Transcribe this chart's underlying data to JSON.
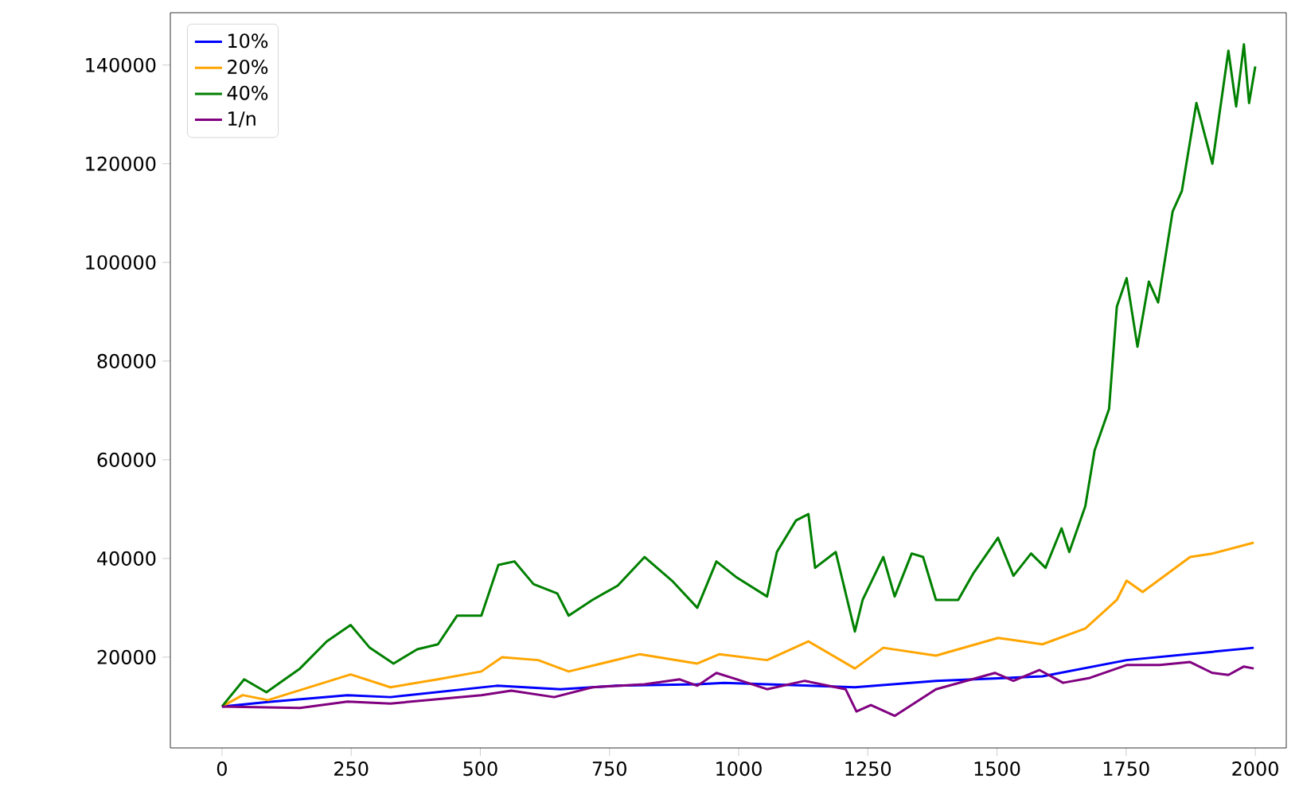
{
  "chart_data": {
    "type": "line",
    "xlim": [
      -100,
      2060
    ],
    "ylim": [
      1600,
      150600
    ],
    "xticks": [
      0,
      250,
      500,
      750,
      1000,
      1250,
      1500,
      1750,
      2000
    ],
    "yticks": [
      20000,
      40000,
      60000,
      80000,
      100000,
      120000,
      140000
    ],
    "grid": false,
    "legend": "top left",
    "marker": "none",
    "line_style": "solid",
    "series": [
      {
        "name": "10%",
        "color": "#0000ff",
        "x": [
          0,
          89,
          243,
          326,
          532,
          655,
          760,
          920,
          972,
          1225,
          1382,
          1588,
          1751,
          1997
        ],
        "values": [
          10000,
          10900,
          12300,
          11900,
          14200,
          13500,
          14200,
          14500,
          14800,
          13900,
          15200,
          16100,
          19400,
          21900
        ]
      },
      {
        "name": "20%",
        "color": "#ffa500",
        "x": [
          0,
          40,
          89,
          249,
          326,
          418,
          502,
          542,
          612,
          671,
          809,
          920,
          963,
          1055,
          1135,
          1225,
          1280,
          1382,
          1502,
          1588,
          1671,
          1732,
          1751,
          1782,
          1874,
          1917,
          1997
        ],
        "values": [
          10000,
          12300,
          11300,
          16500,
          13900,
          15500,
          17100,
          20000,
          19400,
          17100,
          20600,
          18700,
          20600,
          19400,
          23200,
          17700,
          21900,
          20300,
          23900,
          22600,
          25800,
          31600,
          35500,
          33200,
          40300,
          41000,
          43200
        ]
      },
      {
        "name": "40%",
        "color": "#008000",
        "x": [
          0,
          43,
          86,
          151,
          203,
          249,
          286,
          332,
          378,
          418,
          455,
          502,
          535,
          566,
          603,
          649,
          671,
          717,
          766,
          818,
          871,
          920,
          957,
          997,
          1055,
          1074,
          1111,
          1135,
          1148,
          1188,
          1225,
          1240,
          1280,
          1302,
          1335,
          1357,
          1382,
          1425,
          1455,
          1502,
          1532,
          1566,
          1594,
          1625,
          1640,
          1671,
          1689,
          1717,
          1732,
          1751,
          1772,
          1794,
          1812,
          1840,
          1858,
          1886,
          1917,
          1948,
          1963,
          1978,
          1988,
          2000
        ],
        "values": [
          10000,
          15500,
          12900,
          17700,
          23200,
          26500,
          21900,
          18700,
          21600,
          22600,
          28400,
          28400,
          38700,
          39400,
          34800,
          32900,
          28400,
          31600,
          34500,
          40300,
          35500,
          30000,
          39400,
          36100,
          32300,
          41300,
          47700,
          49000,
          38100,
          41300,
          25200,
          31600,
          40300,
          32300,
          41000,
          40300,
          31600,
          31600,
          37100,
          44200,
          36500,
          41000,
          38100,
          46100,
          41300,
          50600,
          61900,
          70300,
          91000,
          96800,
          82900,
          96100,
          91900,
          110300,
          114500,
          132300,
          120000,
          142900,
          131600,
          144200,
          132300,
          139700
        ]
      },
      {
        "name": "1/n",
        "color": "#800080",
        "x": [
          0,
          151,
          243,
          326,
          502,
          560,
          643,
          717,
          818,
          886,
          920,
          957,
          997,
          1055,
          1128,
          1207,
          1228,
          1256,
          1302,
          1382,
          1496,
          1532,
          1582,
          1628,
          1680,
          1751,
          1815,
          1874,
          1917,
          1948,
          1978,
          1997
        ],
        "values": [
          10000,
          9700,
          11000,
          10600,
          12300,
          13200,
          11900,
          13900,
          14500,
          15500,
          14200,
          16800,
          15500,
          13500,
          15200,
          13500,
          9000,
          10300,
          8100,
          13500,
          16800,
          15200,
          17400,
          14800,
          15800,
          18400,
          18400,
          19000,
          16800,
          16400,
          18100,
          17700
        ]
      }
    ]
  }
}
